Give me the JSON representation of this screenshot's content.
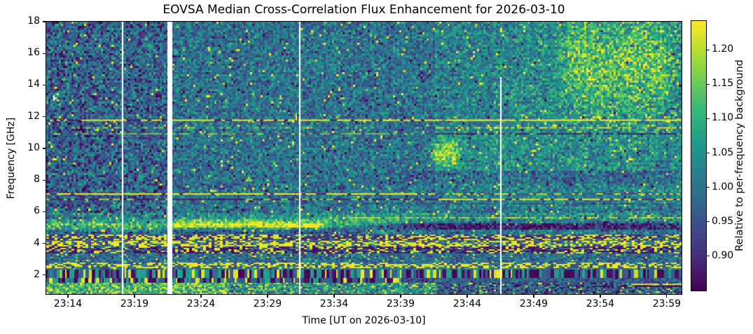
{
  "figure": {
    "title": "EOVSA Median Cross-Correlation Flux Enhancement for 2026-03-10",
    "xlabel": "Time [UT on 2026-03-10]",
    "ylabel": "Frequency [GHz]",
    "colorbar_label": "Relative to per-frequency background"
  },
  "chart_data": {
    "type": "heatmap",
    "title": "EOVSA Median Cross-Correlation Flux Enhancement for 2026-03-10",
    "xlabel": "Time [UT on 2026-03-10]",
    "ylabel": "Frequency [GHz]",
    "colormap": "viridis",
    "colormap_stops": [
      "#440154",
      "#482878",
      "#3e4a89",
      "#31688e",
      "#26828e",
      "#1f9e89",
      "#35b779",
      "#6dcd59",
      "#b4de2c",
      "#fde725"
    ],
    "x_axis": {
      "unit": "UT minutes",
      "range": [
        1392.37,
        1440.11
      ],
      "ticks": [
        {
          "label": "23:14",
          "min": 1394
        },
        {
          "label": "23:19",
          "min": 1399
        },
        {
          "label": "23:24",
          "min": 1404
        },
        {
          "label": "23:29",
          "min": 1409
        },
        {
          "label": "23:34",
          "min": 1414
        },
        {
          "label": "23:39",
          "min": 1419
        },
        {
          "label": "23:44",
          "min": 1424
        },
        {
          "label": "23:49",
          "min": 1429
        },
        {
          "label": "23:54",
          "min": 1434
        },
        {
          "label": "23:59",
          "min": 1439
        }
      ]
    },
    "y_axis": {
      "unit": "GHz",
      "range": [
        0.8,
        18
      ],
      "ticks": [
        {
          "label": "2",
          "f": 2
        },
        {
          "label": "4",
          "f": 4
        },
        {
          "label": "6",
          "f": 6
        },
        {
          "label": "8",
          "f": 8
        },
        {
          "label": "10",
          "f": 10
        },
        {
          "label": "12",
          "f": 12
        },
        {
          "label": "14",
          "f": 14
        },
        {
          "label": "16",
          "f": 16
        },
        {
          "label": "18",
          "f": 18
        }
      ]
    },
    "colorbar": {
      "range": [
        0.85,
        1.242
      ],
      "label": "Relative to per-frequency background",
      "ticks": [
        {
          "label": "0.90",
          "v": 0.9
        },
        {
          "label": "0.95",
          "v": 0.95
        },
        {
          "label": "1.00",
          "v": 1.0
        },
        {
          "label": "1.05",
          "v": 1.05
        },
        {
          "label": "1.10",
          "v": 1.1
        },
        {
          "label": "1.15",
          "v": 1.15
        },
        {
          "label": "1.20",
          "v": 1.2
        }
      ]
    },
    "noise": {
      "sigma": 0.05,
      "hot_prob": 0.022,
      "cold_prob": 0.022,
      "cell": 3,
      "seed": 20260310
    },
    "segments": [
      {
        "t": [
          1392.37,
          1401.5
        ],
        "f": [
          4.55,
          18.01
        ],
        "mean": 0.972,
        "sigma_scale": 1.22
      },
      {
        "t": [
          1421.6,
          1440.12
        ],
        "f": [
          6.2,
          18.01
        ],
        "mean": 1.024
      },
      {
        "t": [
          1431.0,
          1440.12
        ],
        "f": [
          11.0,
          18.01
        ],
        "sigma_scale": 1.25
      }
    ],
    "regions": [
      {
        "t": [
          1417.0,
          1440.2
        ],
        "f": [
          4.82,
          5.33
        ],
        "dv": -0.115,
        "ramp": 5
      },
      {
        "t": [
          1401.8,
          1416.0
        ],
        "f": [
          4.62,
          4.95
        ],
        "dv": -0.065,
        "ramp": 2
      },
      {
        "t": [
          1419.0,
          1440.2
        ],
        "f": [
          7.72,
          8.62
        ],
        "dv": -0.035,
        "ramp": 4
      },
      {
        "t": [
          1421.6,
          1440.2
        ],
        "f": [
          8.62,
          11.0
        ],
        "dv": 0.018,
        "ramp": 1
      },
      {
        "t": [
          1392.3,
          1440.2
        ],
        "f": [
          5.45,
          5.92
        ],
        "dv": 0.042,
        "ramp": 1
      },
      {
        "t": [
          1427.5,
          1440.2
        ],
        "f": [
          11.0,
          18.01
        ],
        "dv": 0.018,
        "ramp": 3
      }
    ],
    "bands": [
      {
        "fc": 5.16,
        "fw": 0.3,
        "t": [
          1401.8,
          1413.4
        ],
        "ramp": 1.6,
        "amp": 0.235
      },
      {
        "fc": 5.14,
        "fw": 0.3,
        "t": [
          1392.0,
          1401.8
        ],
        "ramp": 2.5,
        "amp": 0.155
      },
      {
        "fc": 5.28,
        "fw": 0.36,
        "t": [
          1413.4,
          1419.5
        ],
        "ramp": 2.8,
        "amp": 0.095
      },
      {
        "fc": 15.4,
        "fw": 2.9,
        "t": [
          1431.2,
          1439.4
        ],
        "ramp": 2.4,
        "amp": 0.096
      },
      {
        "fc": 9.7,
        "fw": 0.8,
        "t": [
          1421.3,
          1423.3
        ],
        "ramp": 0.8,
        "amp": 0.15
      }
    ],
    "hlines": [
      {
        "f": 11.78,
        "h": 2,
        "dash": 5,
        "segs": [
          {
            "t": [
              0,
              1421.6
            ],
            "duty": 0.75,
            "on": 1.235,
            "off": 0.875
          },
          {
            "t": [
              1421.6,
              9999
            ],
            "duty": 0.97,
            "on": 1.24,
            "off": 1.05
          }
        ]
      },
      {
        "f": 11.3,
        "h": 2,
        "dash": 4,
        "segs": [
          {
            "t": [
              0,
              1421.6
            ],
            "duty": 0.3,
            "on": 1.16,
            "off": null
          },
          {
            "t": [
              1421.6,
              9999
            ],
            "duty": 0.55,
            "on": 1.21,
            "off": null
          }
        ]
      },
      {
        "f": 10.92,
        "h": 1.6,
        "dash": 5,
        "segs": [
          {
            "t": [
              0,
              1421.6
            ],
            "duty": 0.45,
            "on": 1.17,
            "off": 0.94
          },
          {
            "t": [
              1421.6,
              9999
            ],
            "duty": 0.22,
            "on": 1.12,
            "off": 0.872
          }
        ]
      },
      {
        "f": 7.12,
        "h": 2,
        "dash": 5,
        "segs": [
          {
            "t": [
              0,
              1421.6
            ],
            "duty": 0.88,
            "on": 1.235,
            "off": 0.9
          },
          {
            "t": [
              1421.6,
              9999
            ],
            "duty": 0.5,
            "on": 1.2,
            "off": 0.95
          }
        ]
      },
      {
        "f": 6.78,
        "h": 2,
        "dash": 5,
        "segs": [
          {
            "t": [
              0,
              1421.6
            ],
            "duty": 0.4,
            "on": 1.17,
            "off": 0.885
          },
          {
            "t": [
              1421.6,
              9999
            ],
            "duty": 0.6,
            "on": 1.225,
            "off": 0.89
          }
        ]
      },
      {
        "f": 6.5,
        "h": 1.3,
        "dash": 6,
        "segs": [
          {
            "t": [
              0,
              9999
            ],
            "duty": 0.22,
            "on": 1.08,
            "off": 0.92
          }
        ]
      },
      {
        "f": 5.62,
        "h": 1.6,
        "dash": 4,
        "segs": [
          {
            "t": [
              1413,
              9999
            ],
            "duty": 0.55,
            "on": 1.22,
            "off": null
          }
        ]
      },
      {
        "f": 1.42,
        "h": 1.8,
        "dash": 5,
        "segs": [
          {
            "t": [
              1436.3,
              9999
            ],
            "duty": 0.95,
            "on": 1.235,
            "off": null
          }
        ]
      },
      {
        "f": 1.29,
        "h": 1.8,
        "dash": 5,
        "segs": [
          {
            "t": [
              1433.5,
              9999
            ],
            "duty": 0.85,
            "on": 0.862,
            "off": null
          }
        ]
      }
    ],
    "rows": [
      {
        "f": [
          4.21,
          4.57
        ],
        "type": "cells",
        "cw": 4,
        "ch": 2,
        "pal": [
          [
            1.225,
            0.34
          ],
          [
            0.895,
            0.44
          ],
          [
            1.0,
            0.22
          ]
        ]
      },
      {
        "f": [
          3.86,
          4.17
        ],
        "type": "cells",
        "cw": 4,
        "ch": 2,
        "pal": [
          [
            1.23,
            0.52
          ],
          [
            0.93,
            0.26
          ],
          [
            1.04,
            0.22
          ]
        ]
      },
      {
        "f": [
          3.37,
          3.81
        ],
        "type": "cells",
        "cw": 4,
        "ch": 2,
        "pal": [
          [
            1.225,
            0.24
          ],
          [
            0.872,
            0.5
          ],
          [
            0.995,
            0.26
          ]
        ]
      },
      {
        "f": [
          2.84,
          3.33
        ],
        "type": "noise",
        "mean": 0.985,
        "sigma": 0.05,
        "hot": 0.06
      },
      {
        "f": [
          2.44,
          2.79
        ],
        "type": "cells",
        "cw": 4,
        "ch": 2,
        "pal": [
          [
            1.23,
            0.48
          ],
          [
            0.94,
            0.27
          ],
          [
            1.03,
            0.25
          ]
        ]
      },
      {
        "f": [
          1.82,
          2.35
        ],
        "type": "columns",
        "cw": [
          2,
          5
        ],
        "pal": [
          [
            1.225,
            0.18
          ],
          [
            1.07,
            0.2
          ],
          [
            0.97,
            0.27
          ],
          [
            0.862,
            0.35
          ]
        ]
      },
      {
        "f": [
          1.51,
          1.82
        ],
        "type": "columns",
        "cw": [
          2,
          5
        ],
        "tmax": 1419,
        "fallback_mean": 0.963,
        "pal": [
          [
            1.225,
            0.15
          ],
          [
            1.07,
            0.2
          ],
          [
            0.97,
            0.3
          ],
          [
            0.862,
            0.35
          ]
        ]
      },
      {
        "f": [
          0.8,
          1.51
        ],
        "type": "noise_t",
        "means": [
          [
            1406,
            1.115
          ],
          [
            1421.6,
            1.045
          ],
          [
            9999,
            0.955
          ]
        ],
        "sigma": 0.07,
        "hot": 0.1
      }
    ],
    "gaps": [
      {
        "t": 1398.11,
        "wpx": 2,
        "f": [
          0.8,
          18.01
        ]
      },
      {
        "t": 1401.68,
        "wpx": 7,
        "f": [
          0.8,
          18.01
        ]
      },
      {
        "t": 1411.45,
        "wpx": 2,
        "f": [
          0.8,
          18.01
        ]
      },
      {
        "t": 1426.52,
        "wpx": 2,
        "f": [
          0.8,
          14.5
        ]
      }
    ],
    "artifacts": [
      {
        "t": 1411.15,
        "f": [
          11.75,
          12.2
        ],
        "wpx": 2,
        "v": 1.235
      },
      {
        "t": 1392.95,
        "f": [
          13.0,
          13.35
        ],
        "wpx": 2,
        "white": true
      }
    ]
  }
}
